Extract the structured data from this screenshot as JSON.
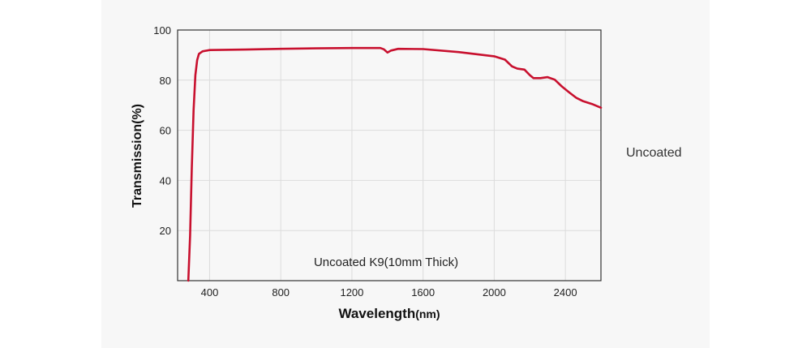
{
  "side_label": "Uncoated",
  "chart_data": {
    "type": "line",
    "title": "",
    "xlabel": "Wavelength",
    "xlabel_unit": "(nm)",
    "ylabel": "Transmission(%)",
    "xlim": [
      220,
      2600
    ],
    "ylim": [
      0,
      100
    ],
    "xticks": [
      400,
      800,
      1200,
      1600,
      2000,
      2400
    ],
    "yticks": [
      20,
      40,
      60,
      80,
      100
    ],
    "grid": true,
    "legend": "none",
    "annotation": "Uncoated K9(10mm Thick)",
    "series": [
      {
        "color": "#c8102e",
        "points": [
          [
            280,
            0
          ],
          [
            290,
            18
          ],
          [
            300,
            45
          ],
          [
            310,
            68
          ],
          [
            320,
            82
          ],
          [
            330,
            88
          ],
          [
            340,
            90.5
          ],
          [
            360,
            91.5
          ],
          [
            400,
            92
          ],
          [
            600,
            92.2
          ],
          [
            800,
            92.5
          ],
          [
            1000,
            92.7
          ],
          [
            1200,
            92.8
          ],
          [
            1360,
            92.8
          ],
          [
            1380,
            92.3
          ],
          [
            1400,
            91
          ],
          [
            1420,
            91.8
          ],
          [
            1460,
            92.5
          ],
          [
            1600,
            92.4
          ],
          [
            1800,
            91.2
          ],
          [
            2000,
            89.5
          ],
          [
            2060,
            88.2
          ],
          [
            2100,
            85.5
          ],
          [
            2130,
            84.6
          ],
          [
            2170,
            84.2
          ],
          [
            2200,
            82
          ],
          [
            2220,
            80.8
          ],
          [
            2260,
            80.8
          ],
          [
            2300,
            81.2
          ],
          [
            2340,
            80.2
          ],
          [
            2380,
            77.5
          ],
          [
            2420,
            75.2
          ],
          [
            2460,
            73
          ],
          [
            2500,
            71.6
          ],
          [
            2550,
            70.5
          ],
          [
            2600,
            69
          ]
        ]
      }
    ]
  }
}
